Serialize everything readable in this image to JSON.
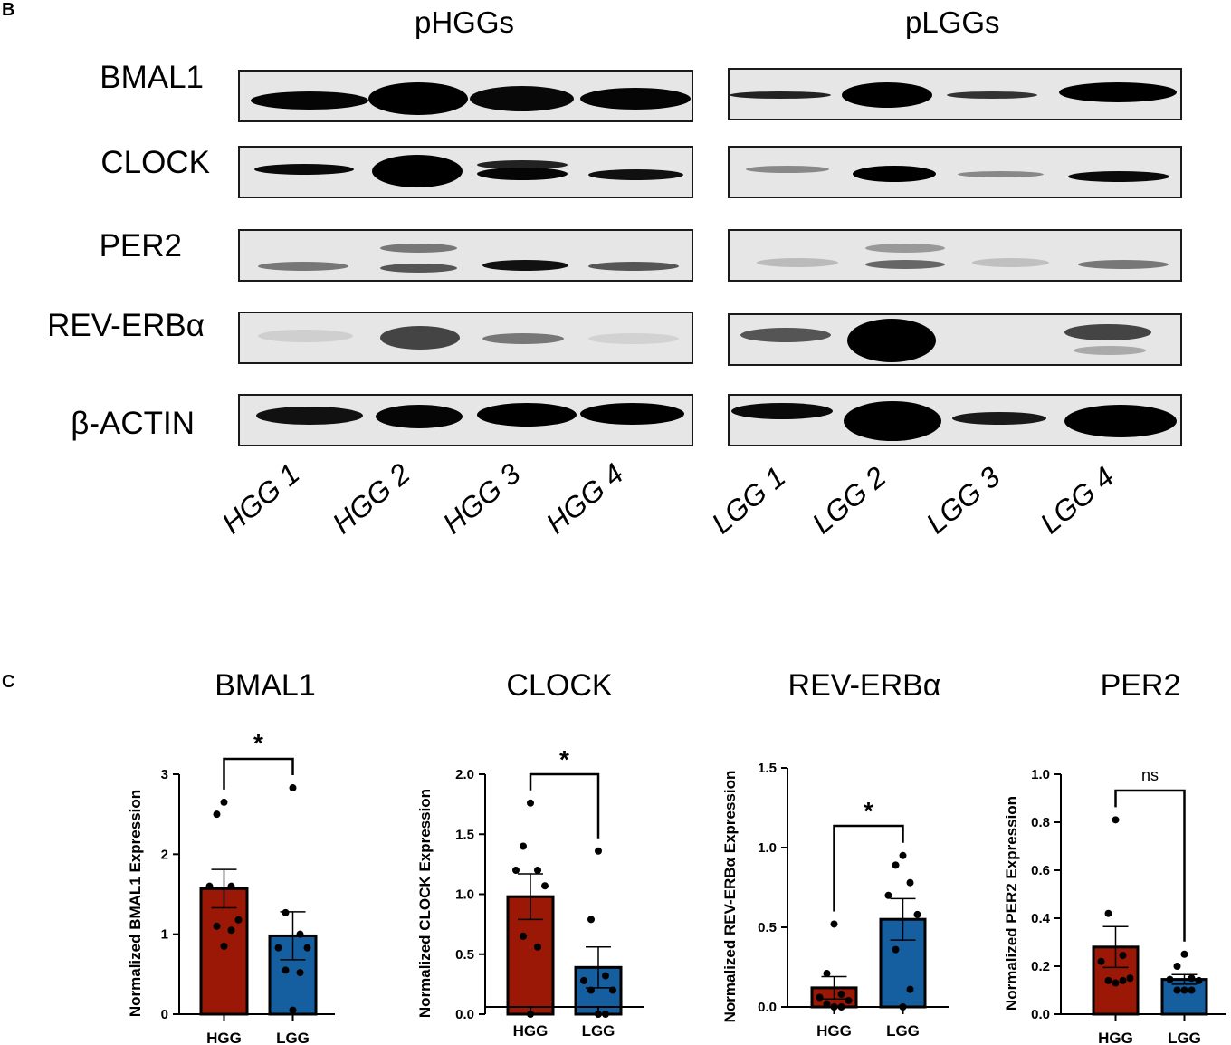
{
  "panels": {
    "b": {
      "letter": "B",
      "groups": [
        {
          "title": "pHGGs",
          "lanes": [
            "HGG 1",
            "HGG 2",
            "HGG 3",
            "HGG 4"
          ]
        },
        {
          "title": "pLGGs",
          "lanes": [
            "LGG 1",
            "LGG 2",
            "LGG 3",
            "LGG 4"
          ]
        }
      ],
      "rows": [
        "BMAL1",
        "CLOCK",
        "PER2",
        "REV-ERBα",
        "β-ACTIN"
      ]
    },
    "c": {
      "letter": "C"
    }
  },
  "colors": {
    "hgg_bar": "#9b1706",
    "lgg_bar": "#155fa0",
    "axis": "#000000"
  },
  "chart_data": [
    {
      "type": "bar",
      "title": "BMAL1",
      "categories": [
        "HGG",
        "LGG"
      ],
      "values": [
        1.57,
        0.98
      ],
      "sem": [
        0.24,
        0.3
      ],
      "points": {
        "HGG": [
          2.65,
          2.5,
          1.6,
          1.6,
          1.18,
          1.1,
          1.05,
          0.85
        ],
        "LGG": [
          2.83,
          1.27,
          1.0,
          0.83,
          0.83,
          0.55,
          0.52,
          0.05
        ]
      },
      "significance": "*",
      "xlabel": "",
      "ylabel": "Normalized BMAL1 Expression",
      "ylim": [
        0,
        3
      ],
      "yticks": [
        "0",
        "1",
        "2",
        "3"
      ],
      "grid": false,
      "legend": "none"
    },
    {
      "type": "bar",
      "title": "CLOCK",
      "categories": [
        "HGG",
        "LGG"
      ],
      "values": [
        0.98,
        0.39
      ],
      "sem": [
        0.19,
        0.17
      ],
      "points": {
        "HGG": [
          1.76,
          1.4,
          1.2,
          1.2,
          1.07,
          0.65,
          0.56,
          0.0
        ],
        "LGG": [
          1.36,
          0.79,
          0.32,
          0.28,
          0.2,
          0.2,
          0.0,
          0.0
        ]
      },
      "significance": "*",
      "xlabel": "",
      "ylabel": "Normalized CLOCK Expression",
      "ylim": [
        0,
        2.0
      ],
      "yticks": [
        "0.0",
        "0.5",
        "1.0",
        "1.5",
        "2.0"
      ],
      "grid": false,
      "legend": "none"
    },
    {
      "type": "bar",
      "title": "REV-ERBα",
      "categories": [
        "HGG",
        "LGG"
      ],
      "values": [
        0.12,
        0.55
      ],
      "sem": [
        0.07,
        0.13
      ],
      "points": {
        "HGG": [
          0.52,
          0.21,
          0.08,
          0.06,
          0.04,
          0.02,
          0.0,
          0.0
        ],
        "LGG": [
          0.95,
          0.89,
          0.78,
          0.7,
          0.58,
          0.36,
          0.11,
          0.0
        ]
      },
      "significance": "*",
      "xlabel": "",
      "ylabel": "Normalized REV-ERBα Expression",
      "ylim": [
        0,
        1.5
      ],
      "yticks": [
        "0.0",
        "0.5",
        "1.0",
        "1.5"
      ],
      "grid": false,
      "legend": "none"
    },
    {
      "type": "bar",
      "title": "PER2",
      "categories": [
        "HGG",
        "LGG"
      ],
      "values": [
        0.28,
        0.145
      ],
      "sem": [
        0.085,
        0.02
      ],
      "points": {
        "HGG": [
          0.81,
          0.42,
          0.245,
          0.22,
          0.15,
          0.14,
          0.14,
          0.13
        ],
        "LGG": [
          0.25,
          0.2,
          0.15,
          0.145,
          0.14,
          0.1,
          0.1,
          0.1
        ]
      },
      "significance": "ns",
      "xlabel": "",
      "ylabel": "Normalized PER2 Expression",
      "ylim": [
        0,
        1.0
      ],
      "yticks": [
        "0.0",
        "0.2",
        "0.4",
        "0.6",
        "0.8",
        "1.0"
      ],
      "grid": false,
      "legend": "none"
    }
  ]
}
